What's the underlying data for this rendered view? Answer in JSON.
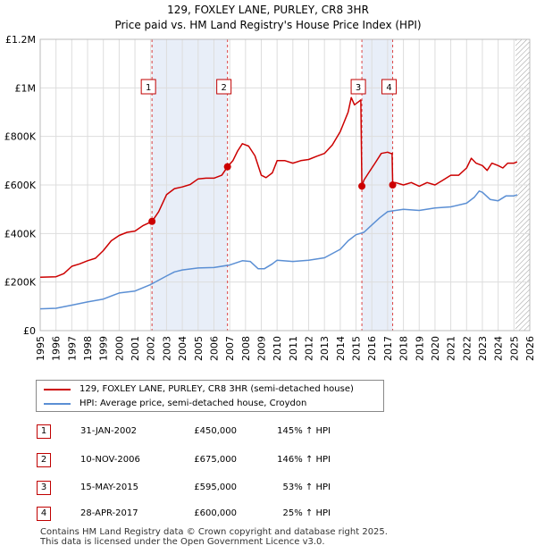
{
  "title": {
    "line1": "129, FOXLEY LANE, PURLEY, CR8 3HR",
    "line2": "Price paid vs. HM Land Registry's House Price Index (HPI)"
  },
  "colors": {
    "property": "#cc0000",
    "hpi": "#5b8fd4",
    "band": "#e8eef8",
    "marker_line": "#dd4444"
  },
  "chart_data": {
    "type": "line",
    "ylim": [
      0,
      1200000
    ],
    "xlim": [
      1995,
      2026
    ],
    "y_ticks": [
      {
        "value": 0,
        "label": "£0"
      },
      {
        "value": 200000,
        "label": "£200K"
      },
      {
        "value": 400000,
        "label": "£400K"
      },
      {
        "value": 600000,
        "label": "£600K"
      },
      {
        "value": 800000,
        "label": "£800K"
      },
      {
        "value": 1000000,
        "label": "£1M"
      },
      {
        "value": 1200000,
        "label": "£1.2M"
      }
    ],
    "x_ticks": [
      "1995",
      "1996",
      "1997",
      "1998",
      "1999",
      "2000",
      "2001",
      "2002",
      "2003",
      "2004",
      "2005",
      "2006",
      "2007",
      "2008",
      "2009",
      "2010",
      "2011",
      "2012",
      "2013",
      "2014",
      "2015",
      "2016",
      "2017",
      "2018",
      "2019",
      "2020",
      "2021",
      "2022",
      "2023",
      "2024",
      "2025",
      "2026"
    ],
    "hatch_from": 2025.1,
    "bands": [
      [
        2002.08,
        2006.86
      ],
      [
        2015.37,
        2017.32
      ]
    ],
    "series": [
      {
        "name": "129, FOXLEY LANE, PURLEY, CR8 3HR (semi-detached house)",
        "x": [
          1995,
          1996,
          1996.5,
          1997,
          1997.5,
          1998,
          1998.5,
          1999,
          1999.5,
          2000,
          2000.5,
          2001,
          2001.5,
          2002.08,
          2002.5,
          2003,
          2003.5,
          2004,
          2004.5,
          2005,
          2005.5,
          2006,
          2006.5,
          2006.86,
          2007.2,
          2007.5,
          2007.8,
          2008.2,
          2008.6,
          2009,
          2009.3,
          2009.7,
          2010,
          2010.5,
          2011,
          2011.5,
          2012,
          2012.5,
          2013,
          2013.5,
          2014,
          2014.5,
          2014.7,
          2014.9,
          2015.2,
          2015.3,
          2015.37,
          2015.5,
          2015.8,
          2016.2,
          2016.6,
          2017,
          2017.2,
          2017.28,
          2017.32,
          2017.5,
          2018,
          2018.5,
          2019,
          2019.5,
          2020,
          2020.5,
          2021,
          2021.5,
          2022,
          2022.3,
          2022.6,
          2023,
          2023.3,
          2023.6,
          2024,
          2024.3,
          2024.6,
          2025,
          2025.2
        ],
        "values": [
          220000,
          222000,
          235000,
          265000,
          275000,
          288000,
          298000,
          330000,
          370000,
          392000,
          405000,
          410000,
          432000,
          450000,
          490000,
          560000,
          585000,
          592000,
          602000,
          625000,
          628000,
          628000,
          640000,
          675000,
          700000,
          740000,
          770000,
          760000,
          720000,
          640000,
          630000,
          650000,
          700000,
          700000,
          690000,
          700000,
          705000,
          718000,
          730000,
          765000,
          820000,
          900000,
          960000,
          930000,
          945000,
          950000,
          595000,
          620000,
          650000,
          690000,
          730000,
          735000,
          730000,
          730000,
          600000,
          610000,
          600000,
          610000,
          595000,
          610000,
          600000,
          620000,
          640000,
          640000,
          670000,
          710000,
          690000,
          680000,
          660000,
          690000,
          680000,
          670000,
          690000,
          690000,
          695000
        ]
      },
      {
        "name": "HPI: Average price, semi-detached house, Croydon",
        "x": [
          1995,
          1996,
          1997,
          1998,
          1999,
          2000,
          2001,
          2002,
          2003,
          2003.5,
          2004,
          2005,
          2006,
          2007,
          2007.8,
          2008.3,
          2008.8,
          2009.2,
          2009.7,
          2010,
          2011,
          2012,
          2013,
          2014,
          2014.5,
          2015,
          2015.5,
          2016,
          2016.5,
          2017,
          2017.5,
          2018,
          2019,
          2020,
          2021,
          2022,
          2022.5,
          2022.8,
          2023,
          2023.5,
          2024,
          2024.5,
          2025,
          2025.2
        ],
        "values": [
          90000,
          92000,
          105000,
          118000,
          130000,
          155000,
          163000,
          190000,
          225000,
          242000,
          250000,
          258000,
          260000,
          270000,
          288000,
          285000,
          255000,
          255000,
          275000,
          290000,
          285000,
          290000,
          300000,
          335000,
          370000,
          395000,
          405000,
          435000,
          465000,
          490000,
          495000,
          500000,
          495000,
          505000,
          510000,
          525000,
          550000,
          575000,
          570000,
          540000,
          535000,
          555000,
          555000,
          560000
        ]
      }
    ],
    "sales": [
      {
        "label": "1",
        "x": 2002.08,
        "value": 450000
      },
      {
        "label": "2",
        "x": 2006.86,
        "value": 675000
      },
      {
        "label": "3",
        "x": 2015.37,
        "value": 595000
      },
      {
        "label": "4",
        "x": 2017.32,
        "value": 600000
      }
    ]
  },
  "legend": {
    "property_label": "129, FOXLEY LANE, PURLEY, CR8 3HR (semi-detached house)",
    "hpi_label": "HPI: Average price, semi-detached house, Croydon"
  },
  "transactions": [
    {
      "num": "1",
      "date": "31-JAN-2002",
      "price": "£450,000",
      "hpi": "145% ↑ HPI"
    },
    {
      "num": "2",
      "date": "10-NOV-2006",
      "price": "£675,000",
      "hpi": "146% ↑ HPI"
    },
    {
      "num": "3",
      "date": "15-MAY-2015",
      "price": "£595,000",
      "hpi": "53% ↑ HPI"
    },
    {
      "num": "4",
      "date": "28-APR-2017",
      "price": "£600,000",
      "hpi": "25% ↑ HPI"
    }
  ],
  "footer": {
    "line1": "Contains HM Land Registry data © Crown copyright and database right 2025.",
    "line2": "This data is licensed under the Open Government Licence v3.0."
  }
}
